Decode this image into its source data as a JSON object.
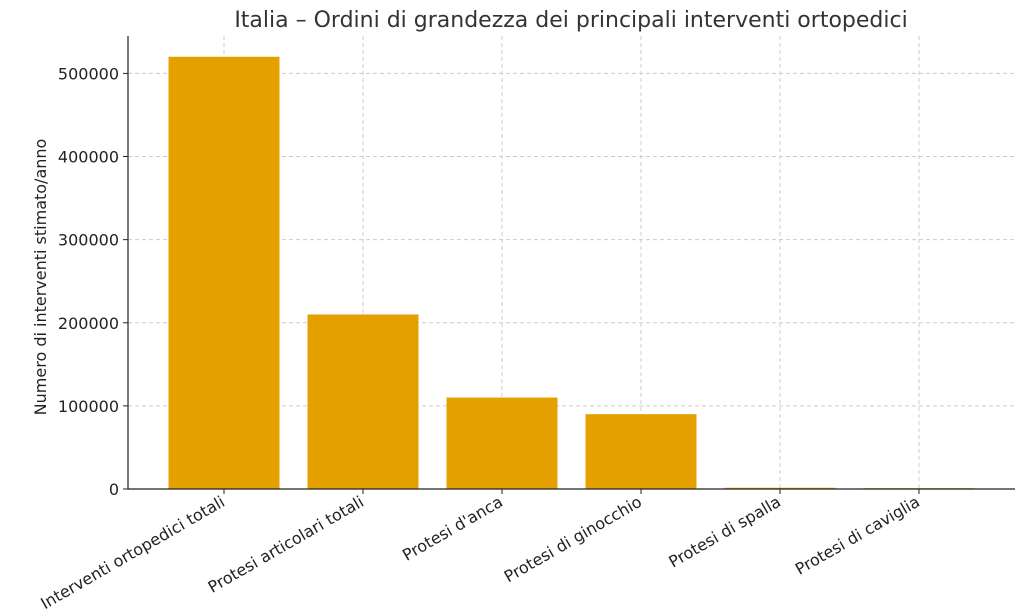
{
  "chart_data": {
    "type": "bar",
    "title": "Italia – Ordini di grandezza dei principali interventi ortopedici",
    "xlabel": "",
    "ylabel": "Numero di interventi stimato/anno",
    "categories": [
      "Interventi ortopedici totali",
      "Protesi articolari totali",
      "Protesi d'anca",
      "Protesi di ginocchio",
      "Protesi di spalla",
      "Protesi di caviglia"
    ],
    "values": [
      520000,
      210000,
      110000,
      90000,
      1500,
      500
    ],
    "ylim": [
      0,
      545000
    ],
    "yticks": [
      0,
      100000,
      200000,
      300000,
      400000,
      500000
    ],
    "ytick_labels": [
      "0",
      "100000",
      "200000",
      "300000",
      "400000",
      "500000"
    ],
    "grid": true,
    "bar_color": "#E5A000"
  }
}
